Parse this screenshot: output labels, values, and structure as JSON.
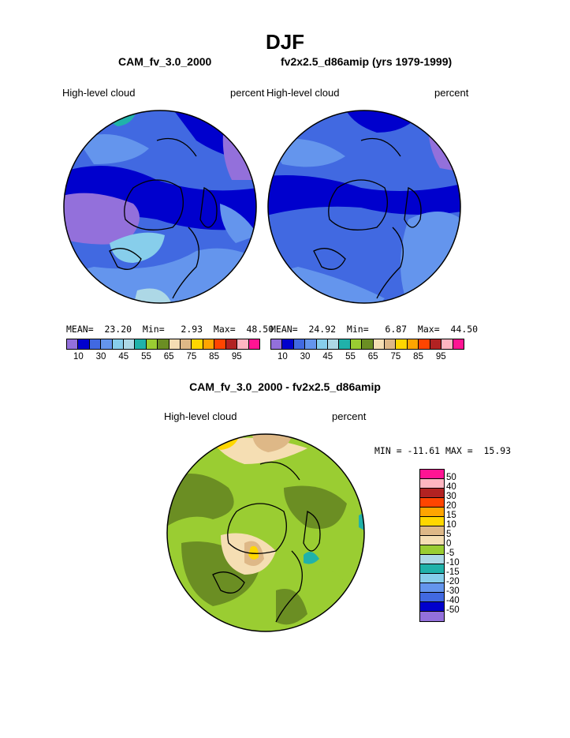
{
  "title": "DJF",
  "case1": "CAM_fv_3.0_2000",
  "case2": "fv2x2.5_d86amip (yrs 1979-1999)",
  "panel_left": {
    "variable": "High-level cloud",
    "units": "percent",
    "stats": "MEAN=  23.20  Min=   2.93  Max=  48.50"
  },
  "panel_right": {
    "variable": "High-level cloud",
    "units": "percent",
    "stats": "MEAN=  24.92  Min=   6.87  Max=  44.50"
  },
  "colorbar": {
    "colors": [
      "#9370db",
      "#0000cd",
      "#4169e1",
      "#6495ed",
      "#87ceeb",
      "#add8e6",
      "#20b2aa",
      "#9acd32",
      "#6b8e23",
      "#f5deb3",
      "#deb887",
      "#ffd700",
      "#ffa500",
      "#ff4500",
      "#b22222",
      "#ffb6c1",
      "#ff1493"
    ],
    "labels": [
      "10",
      "30",
      "45",
      "55",
      "65",
      "75",
      "85",
      "95"
    ]
  },
  "diff_title": "CAM_fv_3.0_2000 - fv2x2.5_d86amip",
  "diff_panel": {
    "variable": "High-level cloud",
    "units": "percent",
    "stats": "MIN = -11.61 MAX =  15.93"
  },
  "diff_colorbar": {
    "colors": [
      "#ff1493",
      "#ffb6c1",
      "#b22222",
      "#ff4500",
      "#ffa500",
      "#ffd700",
      "#deb887",
      "#f5deb3",
      "#9acd32",
      "#add8e6",
      "#20b2aa",
      "#87ceeb",
      "#6495ed",
      "#4169e1",
      "#0000cd",
      "#9370db"
    ],
    "labels": [
      "50",
      "40",
      "30",
      "20",
      "15",
      "10",
      "5",
      "0",
      "-5",
      "-10",
      "-15",
      "-20",
      "-30",
      "-40",
      "-50"
    ]
  }
}
